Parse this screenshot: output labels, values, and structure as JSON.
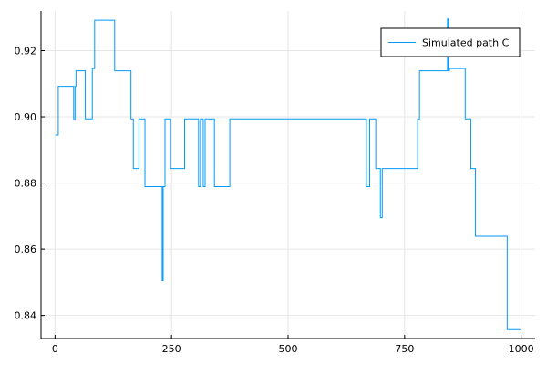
{
  "chart_data": {
    "type": "line",
    "title": "",
    "xlabel": "",
    "ylabel": "",
    "xlim": [
      -30,
      1030
    ],
    "ylim": [
      0.833,
      0.932
    ],
    "x_ticks": [
      0,
      250,
      500,
      750,
      1000
    ],
    "x_tick_labels": [
      "0",
      "250",
      "500",
      "750",
      "1000"
    ],
    "y_ticks": [
      0.84,
      0.86,
      0.88,
      0.9,
      0.92
    ],
    "y_tick_labels": [
      "0.84",
      "0.86",
      "0.88",
      "0.90",
      "0.92"
    ],
    "grid": true,
    "legend_position": "top-right",
    "series": [
      {
        "name": "Simulated path C",
        "color": "#009af9",
        "x": [
          1,
          7,
          7,
          40,
          40,
          43,
          43,
          45,
          45,
          65,
          65,
          80,
          80,
          85,
          85,
          90,
          90,
          128,
          128,
          163,
          163,
          168,
          168,
          180,
          180,
          193,
          193,
          213,
          213,
          230,
          230,
          232,
          232,
          236,
          236,
          248,
          248,
          278,
          278,
          308,
          308,
          312,
          312,
          318,
          318,
          322,
          322,
          338,
          338,
          342,
          342,
          375,
          375,
          475,
          475,
          668,
          668,
          675,
          675,
          688,
          688,
          692,
          692,
          698,
          698,
          702,
          702,
          716,
          716,
          778,
          778,
          782,
          782,
          842,
          842,
          844,
          844,
          846,
          846,
          850,
          850,
          880,
          880,
          892,
          892,
          897,
          897,
          902,
          902,
          927,
          927,
          970,
          970,
          976,
          976,
          998
        ],
        "y": [
          0.8945,
          0.8945,
          0.9092,
          0.9092,
          0.899,
          0.899,
          0.9092,
          0.9092,
          0.9139,
          0.9139,
          0.8994,
          0.8994,
          0.9146,
          0.9146,
          0.9292,
          0.9292,
          0.9292,
          0.9292,
          0.9139,
          0.9139,
          0.8994,
          0.8994,
          0.8844,
          0.8844,
          0.8994,
          0.8994,
          0.8789,
          0.8789,
          0.8789,
          0.8789,
          0.8505,
          0.8505,
          0.8789,
          0.8789,
          0.8994,
          0.8994,
          0.8844,
          0.8844,
          0.8994,
          0.8994,
          0.8789,
          0.8789,
          0.8994,
          0.8994,
          0.8789,
          0.8789,
          0.8994,
          0.8994,
          0.8994,
          0.8994,
          0.8789,
          0.8789,
          0.8994,
          0.8994,
          0.8994,
          0.8994,
          0.8789,
          0.8789,
          0.8994,
          0.8994,
          0.8844,
          0.8844,
          0.8844,
          0.8844,
          0.8695,
          0.8695,
          0.8844,
          0.8844,
          0.8844,
          0.8844,
          0.8994,
          0.8994,
          0.9139,
          0.9139,
          0.9296,
          0.9296,
          0.9139,
          0.9139,
          0.9146,
          0.9146,
          0.9146,
          0.9146,
          0.8994,
          0.8994,
          0.8844,
          0.8844,
          0.8844,
          0.8844,
          0.8639,
          0.8639,
          0.8639,
          0.8639,
          0.8357,
          0.8357,
          0.8357,
          0.8357
        ]
      }
    ]
  }
}
